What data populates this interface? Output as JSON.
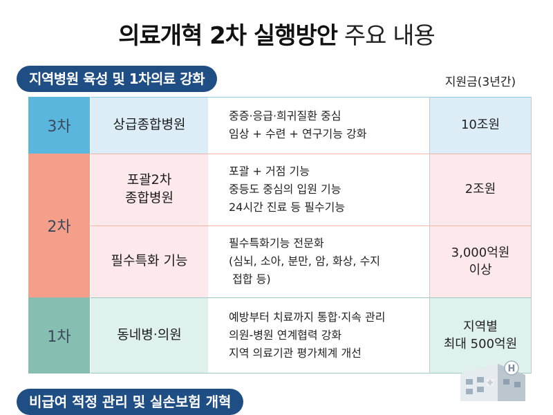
{
  "header": {
    "title_bold": "의료개혁 2차 실행방안",
    "title_light": "주요 내용"
  },
  "section1": {
    "label": "지역병원 육성 및 1차의료 강화",
    "budget_header": "지원금(3년간)"
  },
  "rows": [
    {
      "tier": "3차",
      "name": "상급종합병원",
      "desc": [
        "중증·응급·희귀질환 중심",
        "임상 + 수련 + 연구기능 강화"
      ],
      "amount": "10조원"
    },
    {
      "tier": "2차",
      "name": "포괄2차\n종합병원",
      "desc": [
        "포괄 + 거점 기능",
        "중등도 중심의 입원 기능",
        "24시간 진료 등 필수기능"
      ],
      "amount": "2조원"
    },
    {
      "tier": "2차",
      "name": "필수특화 기능",
      "desc": [
        "필수특화기능 전문화",
        "(심뇌, 소아, 분만, 암, 화상, 수지",
        " 접합 등)"
      ],
      "amount": "3,000억원\n이상"
    },
    {
      "tier": "1차",
      "name": "동네병·의원",
      "desc": [
        "예방부터 치료까지 통합·지속 관리",
        "의원-병원 연계협력 강화",
        "지역 의료기관 평가체계 개선"
      ],
      "amount": "지역별\n최대 500억원"
    }
  ],
  "section2": {
    "label": "비급여 적정 관리 및 실손보험 개혁"
  },
  "colors": {
    "navy": "#1f4e85",
    "tier3": "#5bb6dd",
    "row3_bg": "#dcedf8",
    "tier2": "#f59f8b",
    "row2_bg": "#fde9ec",
    "tier1": "#86beb2",
    "row1_bg": "#dff1ec"
  },
  "icons": {
    "building": "hospital-building-icon"
  }
}
